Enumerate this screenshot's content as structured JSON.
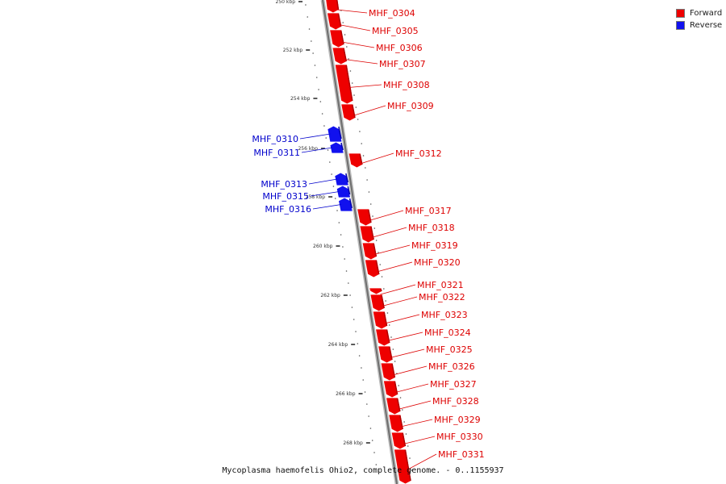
{
  "colors": {
    "forward": "#ee0000",
    "reverse": "#1111ee",
    "backbone": "#7a7a7a"
  },
  "legend": [
    {
      "label": "Forward",
      "color": "#ee0000"
    },
    {
      "label": "Reverse",
      "color": "#1111ee"
    }
  ],
  "caption": "Mycoplasma haemofelis Ohio2, complete genome. - 0..1155937",
  "tick_labels": [
    "250 kbp",
    "252 kbp",
    "254 kbp",
    "256 kbp",
    "258 kbp",
    "260 kbp",
    "262 kbp",
    "264 kbp",
    "266 kbp",
    "268 kbp"
  ],
  "genes": [
    {
      "name": "MHF_0304",
      "strand": "forward"
    },
    {
      "name": "MHF_0305",
      "strand": "forward"
    },
    {
      "name": "MHF_0306",
      "strand": "forward"
    },
    {
      "name": "MHF_0307",
      "strand": "forward"
    },
    {
      "name": "MHF_0308",
      "strand": "forward"
    },
    {
      "name": "MHF_0309",
      "strand": "forward"
    },
    {
      "name": "MHF_0310",
      "strand": "reverse"
    },
    {
      "name": "MHF_0311",
      "strand": "reverse"
    },
    {
      "name": "MHF_0312",
      "strand": "forward"
    },
    {
      "name": "MHF_0313",
      "strand": "reverse"
    },
    {
      "name": "MHF_0315",
      "strand": "reverse"
    },
    {
      "name": "MHF_0316",
      "strand": "reverse"
    },
    {
      "name": "MHF_0317",
      "strand": "forward"
    },
    {
      "name": "MHF_0318",
      "strand": "forward"
    },
    {
      "name": "MHF_0319",
      "strand": "forward"
    },
    {
      "name": "MHF_0320",
      "strand": "forward"
    },
    {
      "name": "MHF_0321",
      "strand": "forward"
    },
    {
      "name": "MHF_0322",
      "strand": "forward"
    },
    {
      "name": "MHF_0323",
      "strand": "forward"
    },
    {
      "name": "MHF_0324",
      "strand": "forward"
    },
    {
      "name": "MHF_0325",
      "strand": "forward"
    },
    {
      "name": "MHF_0326",
      "strand": "forward"
    },
    {
      "name": "MHF_0327",
      "strand": "forward"
    },
    {
      "name": "MHF_0328",
      "strand": "forward"
    },
    {
      "name": "MHF_0329",
      "strand": "forward"
    },
    {
      "name": "MHF_0330",
      "strand": "forward"
    },
    {
      "name": "MHF_0331",
      "strand": "forward"
    }
  ]
}
